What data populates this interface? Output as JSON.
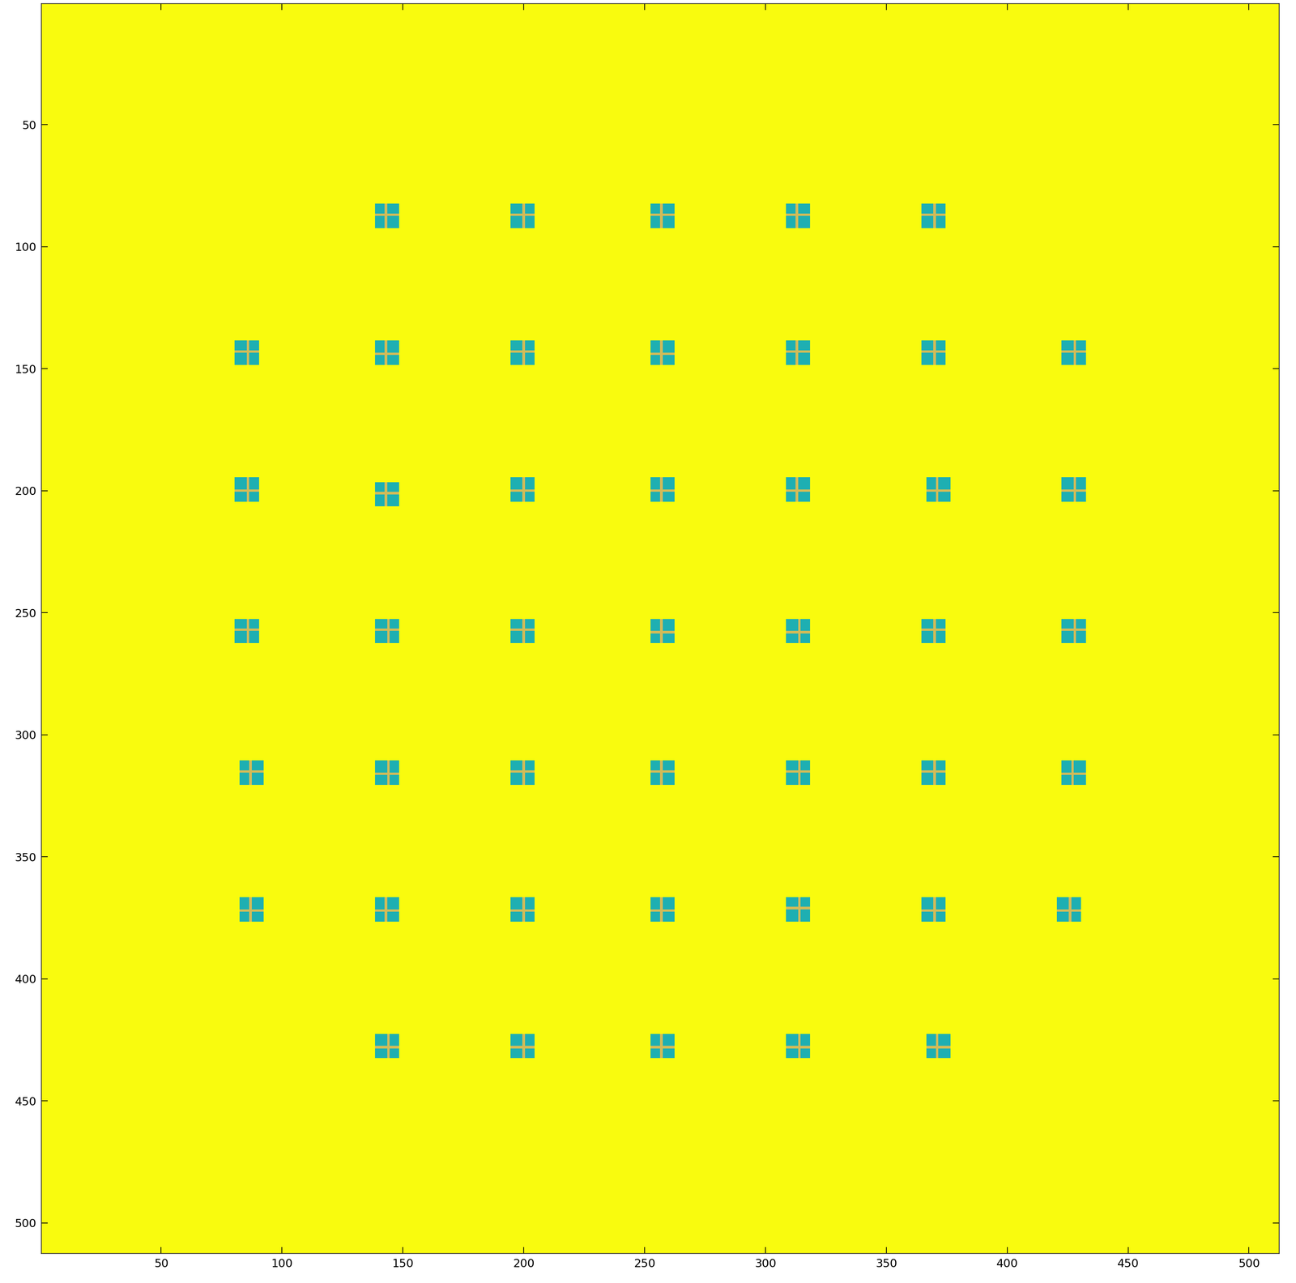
{
  "chart_data": {
    "type": "heatmap",
    "xlim": [
      0.5,
      512.5
    ],
    "ylim": [
      512.5,
      0.5
    ],
    "xticks": [
      50,
      100,
      150,
      200,
      250,
      300,
      350,
      400,
      450,
      500
    ],
    "yticks": [
      50,
      100,
      150,
      200,
      250,
      300,
      350,
      400,
      450,
      500
    ],
    "clim": [
      0,
      1
    ],
    "background": 1.0,
    "patch_value": 0.45,
    "cross_value": 0.75,
    "patch_size": 10,
    "patches": [
      [
        143,
        87
      ],
      [
        200,
        87
      ],
      [
        257,
        87
      ],
      [
        313,
        87
      ],
      [
        370,
        87
      ],
      [
        86,
        143
      ],
      [
        143,
        144
      ],
      [
        200,
        143
      ],
      [
        257,
        144
      ],
      [
        313,
        143
      ],
      [
        370,
        143
      ],
      [
        428,
        143
      ],
      [
        86,
        200
      ],
      [
        143,
        201
      ],
      [
        200,
        200
      ],
      [
        257,
        200
      ],
      [
        313,
        200
      ],
      [
        371,
        200
      ],
      [
        428,
        200
      ],
      [
        86,
        257
      ],
      [
        144,
        257
      ],
      [
        200,
        257
      ],
      [
        257,
        258
      ],
      [
        314,
        258
      ],
      [
        370,
        257
      ],
      [
        428,
        257
      ],
      [
        87,
        315
      ],
      [
        144,
        316
      ],
      [
        200,
        315
      ],
      [
        257,
        315
      ],
      [
        314,
        315
      ],
      [
        370,
        315
      ],
      [
        427,
        316
      ],
      [
        87,
        372
      ],
      [
        143,
        372
      ],
      [
        200,
        372
      ],
      [
        257,
        372
      ],
      [
        314,
        371
      ],
      [
        370,
        372
      ],
      [
        426,
        372
      ],
      [
        144,
        428
      ],
      [
        200,
        428
      ],
      [
        257,
        428
      ],
      [
        314,
        428
      ],
      [
        371,
        428
      ]
    ],
    "tick_labels": true,
    "grid": false
  }
}
